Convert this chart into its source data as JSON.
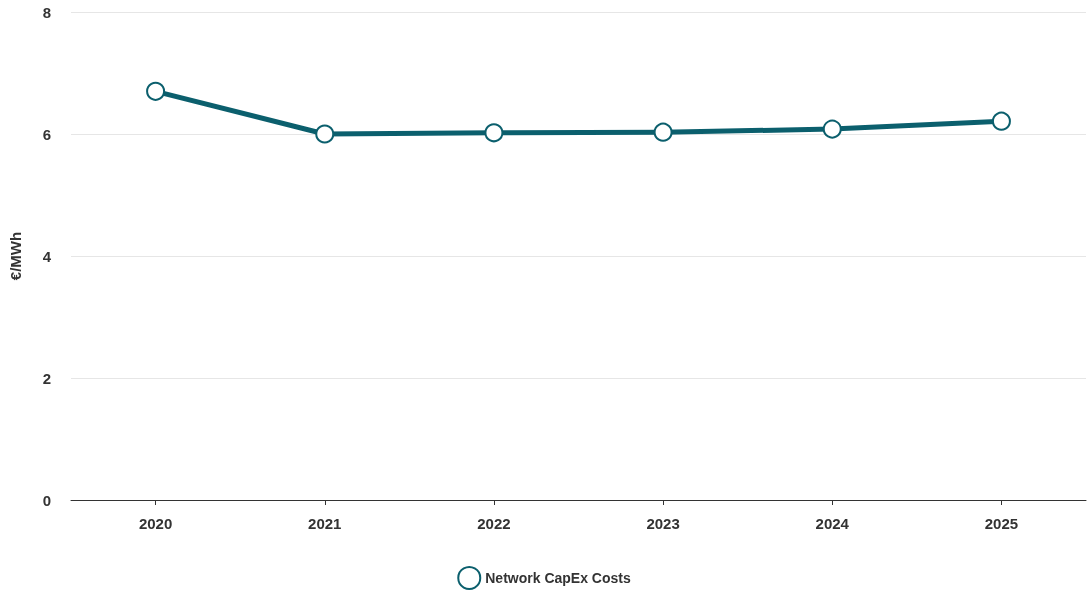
{
  "chart_data": {
    "type": "line",
    "ylabel": "€/MWh",
    "categories": [
      "2020",
      "2021",
      "2022",
      "2023",
      "2024",
      "2025"
    ],
    "series": [
      {
        "name": "Network CapEx Costs",
        "color": "#0b5f6d",
        "values": [
          6.7,
          6.0,
          6.02,
          6.03,
          6.08,
          6.21
        ]
      }
    ],
    "ylim": [
      0,
      8
    ],
    "yticks": [
      0,
      2,
      4,
      6,
      8
    ],
    "grid": "y",
    "legend": "bottom",
    "marker": "circle",
    "line_style": "solid"
  }
}
